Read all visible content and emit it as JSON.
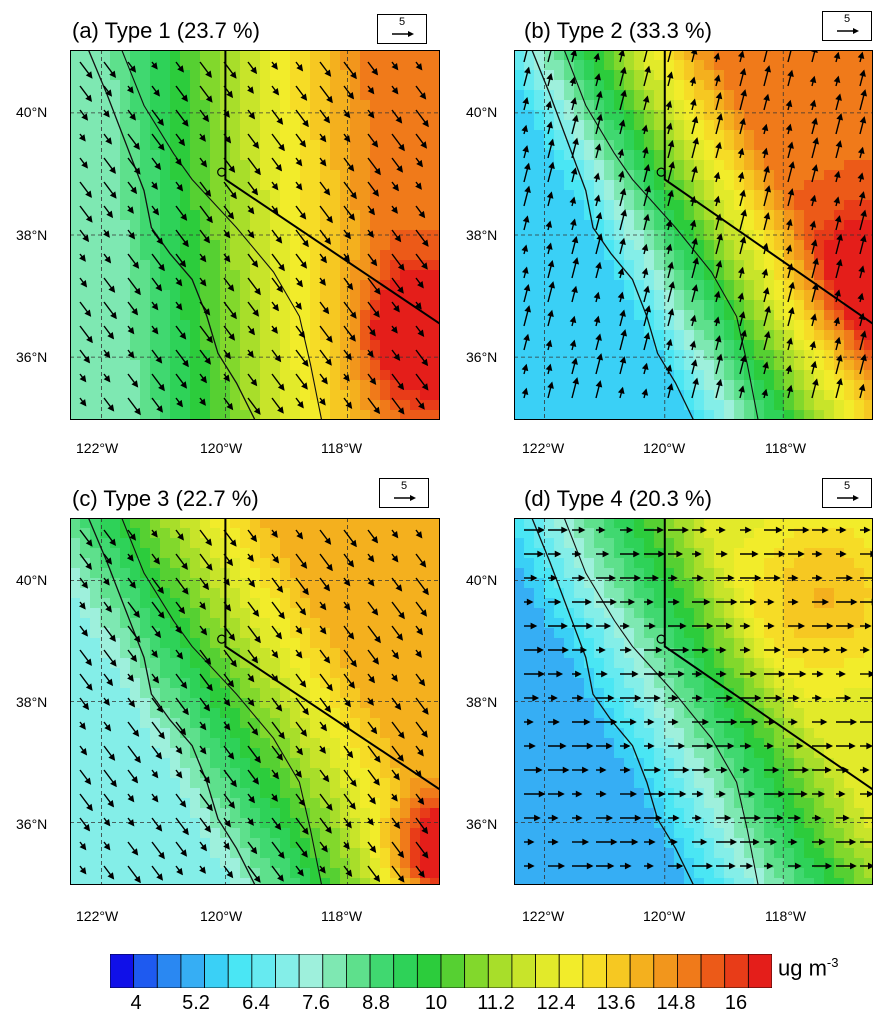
{
  "panels": [
    {
      "id": "a",
      "title": "(a) Type 1 (23.7 %)",
      "ref_vector": "5",
      "wind": "southeast",
      "hotspot": "east"
    },
    {
      "id": "b",
      "title": "(b) Type 2 (33.3 %)",
      "ref_vector": "5",
      "wind": "north",
      "hotspot": "northeast"
    },
    {
      "id": "c",
      "title": "(c) Type 3 (22.7 %)",
      "ref_vector": "5",
      "wind": "southeast",
      "hotspot": "southeast"
    },
    {
      "id": "d",
      "title": "(d) Type 4 (20.3 %)",
      "ref_vector": "5",
      "wind": "east",
      "hotspot": "east"
    }
  ],
  "lat_labels": [
    "40°N",
    "38°N",
    "36°N"
  ],
  "lon_labels": [
    "122°W",
    "120°W",
    "118°W"
  ],
  "colorbar": {
    "unit": "ug m",
    "unit_exponent": "-3",
    "tick_labels": [
      "4",
      "5.2",
      "6.4",
      "7.6",
      "8.8",
      "10",
      "11.2",
      "12.4",
      "13.6",
      "14.8",
      "16"
    ],
    "colors": [
      "#1010e8",
      "#1e5af0",
      "#2a88f2",
      "#36aef4",
      "#3ad0f6",
      "#4ae6f4",
      "#66eaf0",
      "#84eee8",
      "#9ef0dc",
      "#7ee8b2",
      "#5ee08c",
      "#40d870",
      "#2ed258",
      "#2ccc3c",
      "#56d032",
      "#82d82c",
      "#a8de2a",
      "#c8e42a",
      "#e2ea2a",
      "#f2ec2a",
      "#f6dc26",
      "#f6c822",
      "#f4b01e",
      "#f2961c",
      "#f07a1a",
      "#ec5a18",
      "#e83c18",
      "#e41e1a"
    ]
  }
}
